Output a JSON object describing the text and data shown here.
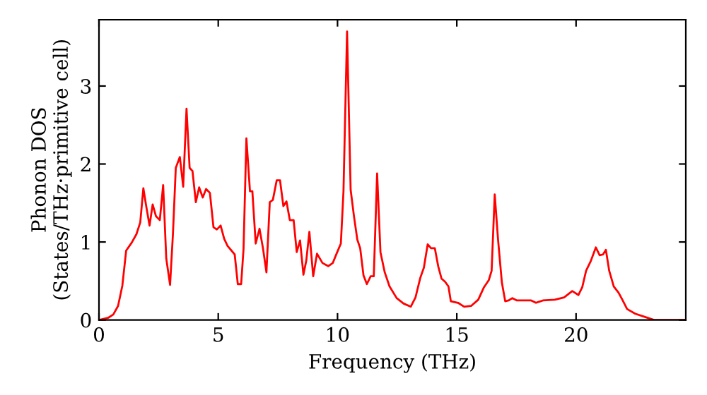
{
  "chart_data": {
    "type": "line",
    "xlabel": "Frequency (THz)",
    "ylabel": "Phonon DOS\n(States/THz·primitive cell)",
    "xlim": [
      0,
      24.6
    ],
    "ylim": [
      0,
      3.85
    ],
    "xticks": [
      0,
      5,
      10,
      15,
      20
    ],
    "yticks": [
      0,
      1,
      2,
      3
    ],
    "grid": false,
    "legend": false,
    "marker": "none",
    "line_style": "solid",
    "series": [
      {
        "color": "#ff0000",
        "x": [
          0,
          0.4,
          0.6,
          0.8,
          0.98,
          1.14,
          1.37,
          1.57,
          1.73,
          1.86,
          1.98,
          2.12,
          2.25,
          2.39,
          2.55,
          2.69,
          2.82,
          2.98,
          3.1,
          3.22,
          3.39,
          3.53,
          3.67,
          3.8,
          3.92,
          4.06,
          4.2,
          4.35,
          4.49,
          4.65,
          4.8,
          4.94,
          5.1,
          5.25,
          5.39,
          5.69,
          5.82,
          5.96,
          6.06,
          6.18,
          6.33,
          6.43,
          6.57,
          6.73,
          6.88,
          7.02,
          7.16,
          7.29,
          7.45,
          7.59,
          7.73,
          7.86,
          8.0,
          8.16,
          8.29,
          8.43,
          8.57,
          8.69,
          8.82,
          8.98,
          9.14,
          9.37,
          9.61,
          9.8,
          9.96,
          10.14,
          10.25,
          10.4,
          10.55,
          10.69,
          10.83,
          10.95,
          11.09,
          11.23,
          11.39,
          11.52,
          11.66,
          11.8,
          11.98,
          12.18,
          12.48,
          12.77,
          13.07,
          13.27,
          13.47,
          13.62,
          13.78,
          13.92,
          14.08,
          14.22,
          14.36,
          14.51,
          14.65,
          14.75,
          15.05,
          15.31,
          15.6,
          15.9,
          16.14,
          16.34,
          16.46,
          16.59,
          16.73,
          16.89,
          17.03,
          17.17,
          17.33,
          17.52,
          18.12,
          18.32,
          18.61,
          19.11,
          19.5,
          19.84,
          20.1,
          20.26,
          20.42,
          20.61,
          20.83,
          20.99,
          21.13,
          21.25,
          21.39,
          21.58,
          21.78,
          21.94,
          22.14,
          22.48,
          22.87,
          23.27,
          24.55
        ],
        "values": [
          0,
          0.03,
          0.07,
          0.18,
          0.44,
          0.89,
          0.99,
          1.1,
          1.25,
          1.69,
          1.46,
          1.21,
          1.48,
          1.33,
          1.28,
          1.73,
          0.79,
          0.45,
          1.1,
          1.95,
          2.09,
          1.71,
          2.71,
          1.95,
          1.91,
          1.51,
          1.7,
          1.57,
          1.68,
          1.63,
          1.19,
          1.16,
          1.21,
          1.04,
          0.95,
          0.84,
          0.46,
          0.46,
          0.91,
          2.33,
          1.65,
          1.65,
          0.98,
          1.17,
          0.91,
          0.61,
          1.51,
          1.54,
          1.79,
          1.79,
          1.46,
          1.52,
          1.28,
          1.28,
          0.87,
          1.02,
          0.58,
          0.76,
          1.13,
          0.56,
          0.85,
          0.73,
          0.69,
          0.73,
          0.85,
          0.98,
          1.65,
          3.7,
          1.67,
          1.33,
          1.03,
          0.92,
          0.57,
          0.46,
          0.56,
          0.56,
          1.88,
          0.87,
          0.61,
          0.43,
          0.28,
          0.21,
          0.17,
          0.29,
          0.54,
          0.67,
          0.97,
          0.92,
          0.92,
          0.69,
          0.53,
          0.49,
          0.43,
          0.24,
          0.22,
          0.17,
          0.18,
          0.26,
          0.42,
          0.51,
          0.63,
          1.61,
          1.03,
          0.48,
          0.24,
          0.25,
          0.28,
          0.25,
          0.25,
          0.22,
          0.25,
          0.26,
          0.29,
          0.37,
          0.32,
          0.42,
          0.63,
          0.75,
          0.93,
          0.83,
          0.84,
          0.9,
          0.63,
          0.43,
          0.35,
          0.26,
          0.14,
          0.08,
          0.04,
          0,
          0
        ]
      }
    ]
  }
}
